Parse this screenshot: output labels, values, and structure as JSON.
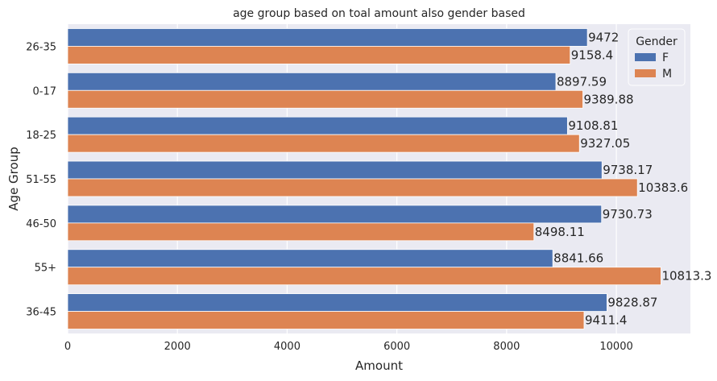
{
  "chart_data": {
    "type": "bar",
    "orientation": "horizontal",
    "title": "age group based on toal amount also gender based",
    "xlabel": "Amount",
    "ylabel": "Age Group",
    "xlim": [
      0,
      11350
    ],
    "xticks": [
      "0",
      "2000",
      "4000",
      "6000",
      "8000",
      "10000"
    ],
    "xtick_values": [
      0,
      2000,
      4000,
      6000,
      8000,
      10000
    ],
    "categories": [
      "26-35",
      "0-17",
      "18-25",
      "51-55",
      "46-50",
      "55+",
      "36-45"
    ],
    "series": [
      {
        "name": "F",
        "color": "#4c72b0",
        "values": [
          9472,
          8897.59,
          9108.81,
          9738.17,
          9730.73,
          8841.66,
          9828.87
        ],
        "labels": [
          "9472",
          "8897.59",
          "9108.81",
          "9738.17",
          "9730.73",
          "8841.66",
          "9828.87"
        ]
      },
      {
        "name": "M",
        "color": "#dd8452",
        "values": [
          9158.4,
          9389.88,
          9327.05,
          10383.6,
          8498.11,
          10813.3,
          9411.4
        ],
        "labels": [
          "9158.4",
          "9389.88",
          "9327.05",
          "10383.6",
          "8498.11",
          "10813.3",
          "9411.4"
        ]
      }
    ],
    "legend": {
      "title": "Gender",
      "placement": "top-right"
    },
    "grid": true,
    "background": "#eaeaf2"
  }
}
